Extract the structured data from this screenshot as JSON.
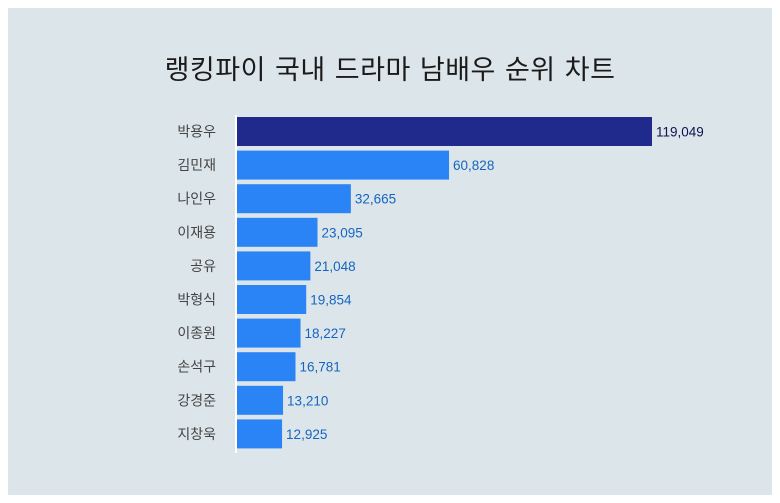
{
  "chart_data": {
    "type": "bar",
    "orientation": "horizontal",
    "title": "랭킹파이 국내 드라마 남배우 순위 차트",
    "categories": [
      "박용우",
      "김민재",
      "나인우",
      "이재용",
      "공유",
      "박형식",
      "이종원",
      "손석구",
      "강경준",
      "지창욱"
    ],
    "values": [
      119049,
      60828,
      32665,
      23095,
      21048,
      19854,
      18227,
      16781,
      13210,
      12925
    ],
    "value_labels": [
      "119,049",
      "60,828",
      "32,665",
      "23,095",
      "21,048",
      "19,854",
      "18,227",
      "16,781",
      "13,210",
      "12,925"
    ],
    "xlim": [
      0,
      119049
    ],
    "grid": false,
    "legend": "none",
    "colors": {
      "highlight_bar": "#1f2a8c",
      "bar": "#2b84f5",
      "highlight_label": "#0d1450",
      "label": "#1565c0",
      "category_text": "#444444",
      "axis_line": "#ffffff",
      "background": "#dce6ea"
    }
  }
}
